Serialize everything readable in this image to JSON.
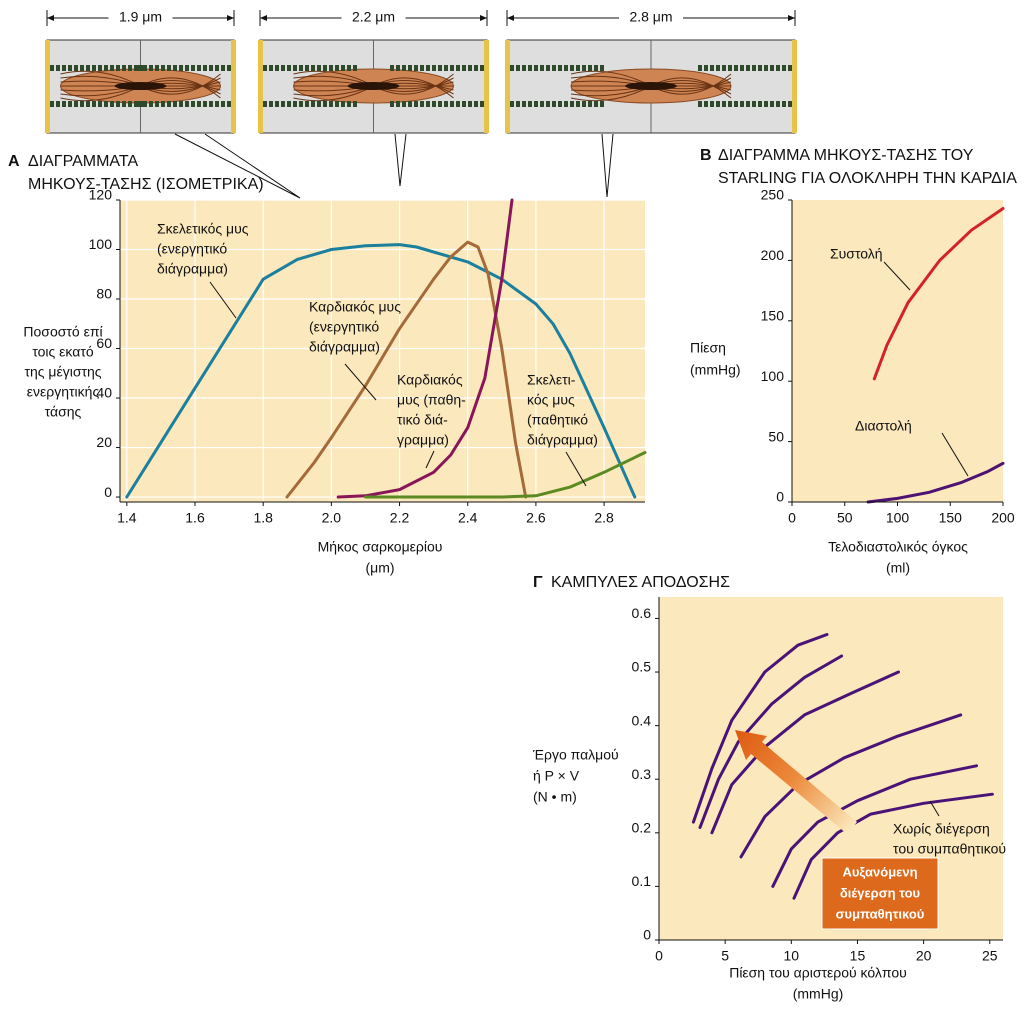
{
  "diagrams": [
    {
      "label": "1.9 μm"
    },
    {
      "label": "2.2 μm"
    },
    {
      "label": "2.8 μm"
    }
  ],
  "chart_data": [
    {
      "type": "line",
      "panel": "Α",
      "title": [
        "ΔΙΑΓΡΑΜΜΑΤΑ",
        "ΜΗΚΟΥΣ-ΤΑΣΗΣ (ΙΣΟΜΕΤΡΙΚΑ)"
      ],
      "x_label": [
        "Μήκος σαρκομερίου",
        "(μm)"
      ],
      "y_label": [
        "Ποσοστό επί",
        "τοις εκατό",
        "της μέγιστης",
        "ενεργητικής",
        "τάσης"
      ],
      "xlim": [
        1.38,
        2.92
      ],
      "xticks": [
        1.4,
        1.6,
        1.8,
        {
          "value": 2,
          "label": "2.0"
        },
        2.2,
        2.4,
        2.6,
        2.8
      ],
      "ylim": [
        -2,
        120
      ],
      "yticks": [
        0,
        20,
        40,
        60,
        80,
        100,
        120
      ],
      "grid": true,
      "background": "#fbe8bc",
      "series": [
        {
          "label": [
            "Σκελετικός μυς",
            "(ενεργητικό",
            "διάγραμμα)"
          ],
          "color": "#1b7f9e",
          "x": [
            1.4,
            1.6,
            1.8,
            1.9,
            2.0,
            2.1,
            2.2,
            2.25,
            2.3,
            2.4,
            2.5,
            2.6,
            2.65,
            2.7,
            2.8,
            2.89
          ],
          "values": [
            0,
            44,
            88,
            96,
            100,
            101.5,
            102,
            101,
            99,
            95,
            88,
            78,
            70,
            58,
            28,
            0
          ]
        },
        {
          "label": [
            "Καρδιακός μυς",
            "(ενεργητικό",
            "διάγραμμα)"
          ],
          "color": "#a46a3a",
          "x": [
            1.87,
            1.95,
            2.0,
            2.1,
            2.2,
            2.3,
            2.35,
            2.4,
            2.43,
            2.46,
            2.5,
            2.54,
            2.57
          ],
          "values": [
            0,
            14,
            24,
            45,
            68,
            88,
            97,
            103,
            101,
            90,
            60,
            22,
            0
          ]
        },
        {
          "label": [
            "Καρδιακός",
            "μυς (παθη-",
            "τικό διά-",
            "γραμμα)"
          ],
          "color": "#8a1559",
          "x": [
            2.02,
            2.1,
            2.2,
            2.3,
            2.35,
            2.4,
            2.45,
            2.5,
            2.53
          ],
          "values": [
            0,
            0.5,
            3,
            10,
            17,
            28,
            48,
            88,
            120
          ]
        },
        {
          "label": [
            "Σκελετι-",
            "κός μυς",
            "(παθητικό",
            "διάγραμμα)"
          ],
          "color": "#5b8a22",
          "x": [
            2.1,
            2.5,
            2.6,
            2.7,
            2.8,
            2.92
          ],
          "values": [
            0,
            0,
            0.5,
            4,
            10,
            18
          ]
        }
      ]
    },
    {
      "type": "line",
      "panel": "Β",
      "title": [
        "ΔΙΑΓΡΑΜΜΑ ΜΗΚΟΥΣ-ΤΑΣΗΣ ΤΟΥ",
        "STARLING ΓΙΑ ΟΛΟΚΛΗΡΗ ΤΗΝ ΚΑΡΔΙΑ"
      ],
      "x_label": [
        "Τελοδιαστολικός όγκος",
        "(ml)"
      ],
      "y_label": [
        "Πίεση",
        "(mmHg)"
      ],
      "xlim": [
        0,
        200
      ],
      "xticks": [
        0,
        50,
        100,
        150,
        200
      ],
      "ylim": [
        0,
        250
      ],
      "yticks": [
        0,
        50,
        100,
        150,
        200,
        250
      ],
      "grid": false,
      "background": "#fbe8bc",
      "series": [
        {
          "label": [
            "Συστολή"
          ],
          "color": "#d2232a",
          "x": [
            78,
            90,
            110,
            140,
            170,
            200
          ],
          "values": [
            102,
            130,
            165,
            200,
            225,
            243
          ]
        },
        {
          "label": [
            "Διαστολή"
          ],
          "color": "#4d1272",
          "x": [
            72,
            100,
            130,
            160,
            185,
            200
          ],
          "values": [
            0,
            3,
            8,
            16,
            25,
            32
          ]
        }
      ]
    },
    {
      "type": "line",
      "panel": "Γ",
      "title": [
        "ΚΑΜΠΥΛΕΣ ΑΠΟΔΟΣΗΣ"
      ],
      "x_label": [
        "Πίεση του αριστερού κόλπου",
        "(mmHg)"
      ],
      "y_label": [
        "Έργο παλμού",
        "ή P × V",
        "(N • m)"
      ],
      "xlim": [
        0,
        26
      ],
      "xticks": [
        0,
        5,
        10,
        15,
        20,
        25
      ],
      "ylim": [
        0,
        0.64
      ],
      "yticks": [
        0,
        0.1,
        0.2,
        0.3,
        0.4,
        0.5,
        0.6
      ],
      "grid": false,
      "background": "#fbe8bc",
      "arrow_label": [
        "Αυξανόμενη",
        "διέγερση του",
        "συμπαθητικού"
      ],
      "series": [
        {
          "color": "#4a1378",
          "x": [
            2.6,
            4,
            5.5,
            8,
            10.5,
            12.7
          ],
          "values": [
            0.22,
            0.32,
            0.41,
            0.5,
            0.55,
            0.57
          ]
        },
        {
          "color": "#4a1378",
          "x": [
            3.1,
            4.5,
            6,
            8.5,
            11,
            13.8
          ],
          "values": [
            0.21,
            0.3,
            0.37,
            0.44,
            0.49,
            0.53
          ]
        },
        {
          "color": "#4a1378",
          "x": [
            4,
            5.5,
            8,
            11,
            14.5,
            18.1
          ],
          "values": [
            0.2,
            0.29,
            0.36,
            0.42,
            0.46,
            0.5
          ]
        },
        {
          "color": "#4a1378",
          "x": [
            6.2,
            8,
            10.5,
            14,
            18,
            22.8
          ],
          "values": [
            0.155,
            0.23,
            0.29,
            0.34,
            0.38,
            0.42
          ]
        },
        {
          "color": "#4a1378",
          "x": [
            8.6,
            10,
            12,
            15,
            19,
            24
          ],
          "values": [
            0.1,
            0.17,
            0.22,
            0.26,
            0.3,
            0.325
          ]
        },
        {
          "label": [
            "Χωρίς διέγερση",
            "του συμπαθητικού"
          ],
          "color": "#4a1378",
          "x": [
            10.2,
            11.5,
            13.5,
            16,
            20,
            25.2
          ],
          "values": [
            0.078,
            0.15,
            0.2,
            0.235,
            0.255,
            0.272
          ]
        }
      ]
    }
  ]
}
